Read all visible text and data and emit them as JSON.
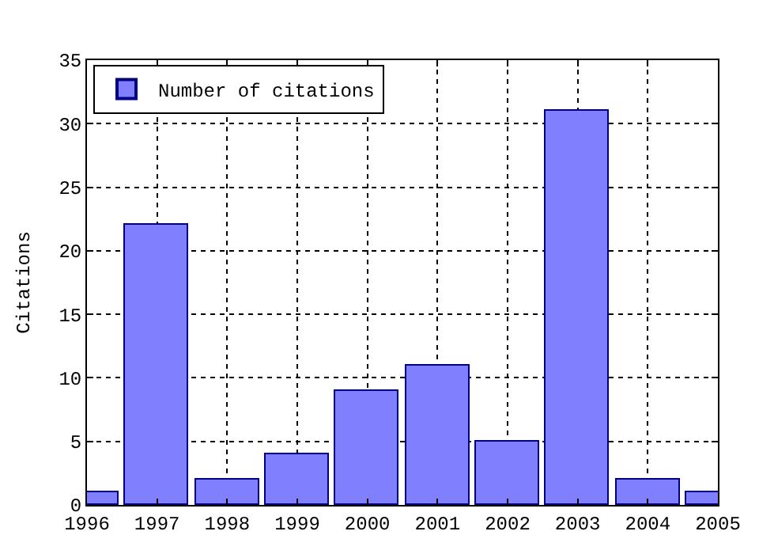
{
  "chart_data": {
    "type": "bar",
    "ylabel": "Citations",
    "x": [
      1996,
      1997,
      1998,
      1999,
      2000,
      2001,
      2002,
      2003,
      2004,
      2005
    ],
    "series": [
      {
        "name": "Number of citations",
        "color": "#8080ff",
        "values": [
          1,
          22,
          2,
          4,
          9,
          11,
          5,
          31,
          2,
          1
        ]
      }
    ],
    "xlim": [
      1996,
      2005
    ],
    "xticks": [
      1996,
      1997,
      1998,
      1999,
      2000,
      2001,
      2002,
      2003,
      2004,
      2005
    ],
    "ylim": [
      0,
      35
    ],
    "yticks": [
      0,
      5,
      10,
      15,
      20,
      25,
      30,
      35
    ],
    "grid": true,
    "legend": "top left"
  }
}
